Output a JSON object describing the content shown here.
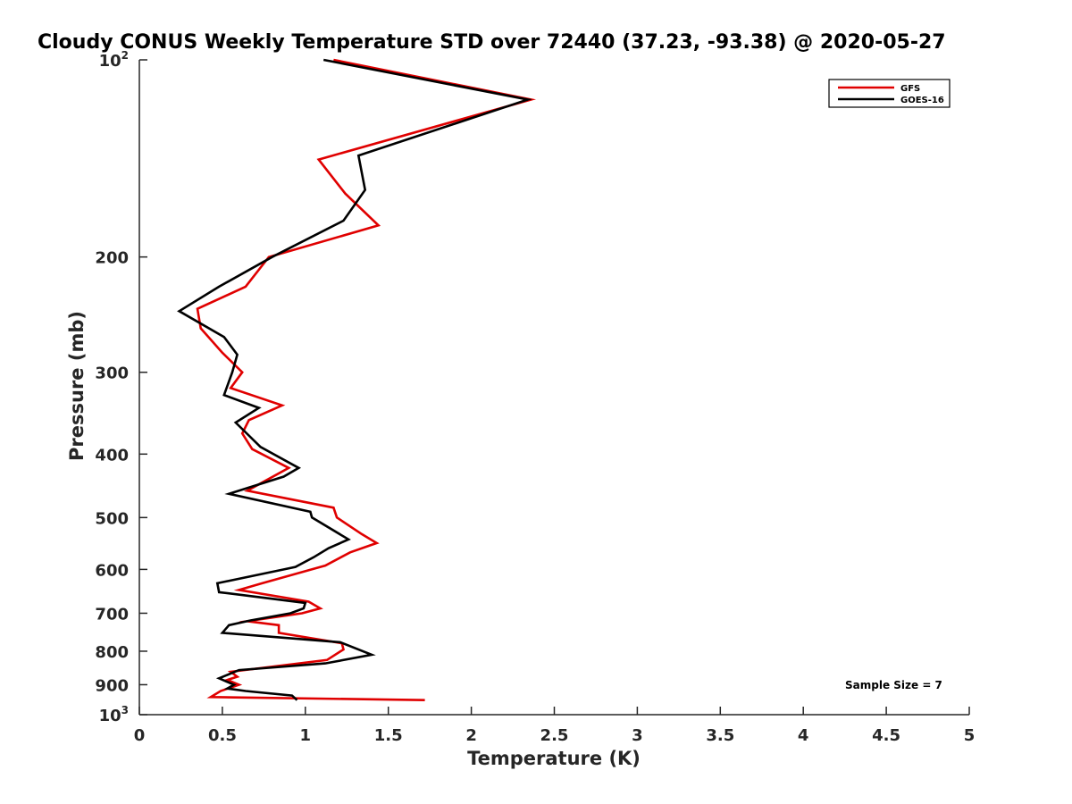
{
  "chart_data": {
    "type": "line",
    "title": "Cloudy CONUS Weekly Temperature STD over 72440 (37.23, -93.38) @ 2020-05-27",
    "xlabel": "Temperature (K)",
    "ylabel": "Pressure (mb)",
    "xlim": [
      0,
      5
    ],
    "ylim": [
      100,
      1000
    ],
    "y_scale": "log",
    "y_reversed": true,
    "x_ticks": [
      "0",
      "0.5",
      "1",
      "1.5",
      "2",
      "2.5",
      "3",
      "3.5",
      "4",
      "4.5",
      "5"
    ],
    "y_ticks": [
      {
        "value": 100,
        "base": "10",
        "exp": "2"
      },
      {
        "value": 200,
        "label": "200"
      },
      {
        "value": 300,
        "label": "300"
      },
      {
        "value": 400,
        "label": "400"
      },
      {
        "value": 500,
        "label": "500"
      },
      {
        "value": 600,
        "label": "600"
      },
      {
        "value": 700,
        "label": "700"
      },
      {
        "value": 800,
        "label": "800"
      },
      {
        "value": 900,
        "label": "900"
      },
      {
        "value": 1000,
        "base": "10",
        "exp": "3"
      }
    ],
    "grid": false,
    "legend_position": "top-right",
    "annotation": "Sample Size = 7",
    "series": [
      {
        "name": "GFS",
        "color": "#e00000",
        "points": [
          [
            1.17,
            100
          ],
          [
            2.36,
            115
          ],
          [
            1.08,
            142
          ],
          [
            1.24,
            160
          ],
          [
            1.44,
            179
          ],
          [
            0.78,
            200
          ],
          [
            0.64,
            222
          ],
          [
            0.35,
            240
          ],
          [
            0.37,
            257
          ],
          [
            0.5,
            280
          ],
          [
            0.62,
            300
          ],
          [
            0.55,
            317
          ],
          [
            0.86,
            337
          ],
          [
            0.66,
            355
          ],
          [
            0.62,
            372
          ],
          [
            0.68,
            393
          ],
          [
            0.9,
            420
          ],
          [
            0.65,
            455
          ],
          [
            1.17,
            483
          ],
          [
            1.19,
            500
          ],
          [
            1.34,
            530
          ],
          [
            1.43,
            547
          ],
          [
            1.27,
            565
          ],
          [
            1.12,
            592
          ],
          [
            0.74,
            630
          ],
          [
            0.6,
            645
          ],
          [
            1.02,
            672
          ],
          [
            1.09,
            688
          ],
          [
            0.98,
            700
          ],
          [
            0.65,
            720
          ],
          [
            0.84,
            730
          ],
          [
            0.84,
            750
          ],
          [
            1.22,
            778
          ],
          [
            1.23,
            795
          ],
          [
            1.13,
            825
          ],
          [
            0.55,
            860
          ],
          [
            0.59,
            875
          ],
          [
            0.53,
            885
          ],
          [
            0.6,
            900
          ],
          [
            0.49,
            920
          ],
          [
            0.43,
            940
          ],
          [
            1.72,
            950
          ]
        ]
      },
      {
        "name": "GOES-16",
        "color": "#000000",
        "points": [
          [
            1.11,
            100
          ],
          [
            2.34,
            115
          ],
          [
            1.32,
            140
          ],
          [
            1.36,
            158
          ],
          [
            1.23,
            176
          ],
          [
            0.8,
            200
          ],
          [
            0.48,
            222
          ],
          [
            0.24,
            242
          ],
          [
            0.51,
            265
          ],
          [
            0.59,
            282
          ],
          [
            0.56,
            300
          ],
          [
            0.51,
            325
          ],
          [
            0.72,
            340
          ],
          [
            0.58,
            358
          ],
          [
            0.73,
            390
          ],
          [
            0.96,
            420
          ],
          [
            0.87,
            433
          ],
          [
            0.54,
            460
          ],
          [
            1.03,
            490
          ],
          [
            1.04,
            500
          ],
          [
            1.26,
            540
          ],
          [
            1.14,
            557
          ],
          [
            1.05,
            575
          ],
          [
            0.94,
            595
          ],
          [
            0.47,
            630
          ],
          [
            0.48,
            650
          ],
          [
            1.0,
            675
          ],
          [
            0.99,
            688
          ],
          [
            0.91,
            700
          ],
          [
            0.67,
            718
          ],
          [
            0.54,
            730
          ],
          [
            0.5,
            750
          ],
          [
            1.21,
            775
          ],
          [
            1.4,
            810
          ],
          [
            1.12,
            835
          ],
          [
            0.6,
            855
          ],
          [
            0.48,
            880
          ],
          [
            0.57,
            900
          ],
          [
            0.53,
            912
          ],
          [
            0.64,
            920
          ],
          [
            0.92,
            935
          ],
          [
            0.95,
            950
          ]
        ]
      }
    ]
  }
}
